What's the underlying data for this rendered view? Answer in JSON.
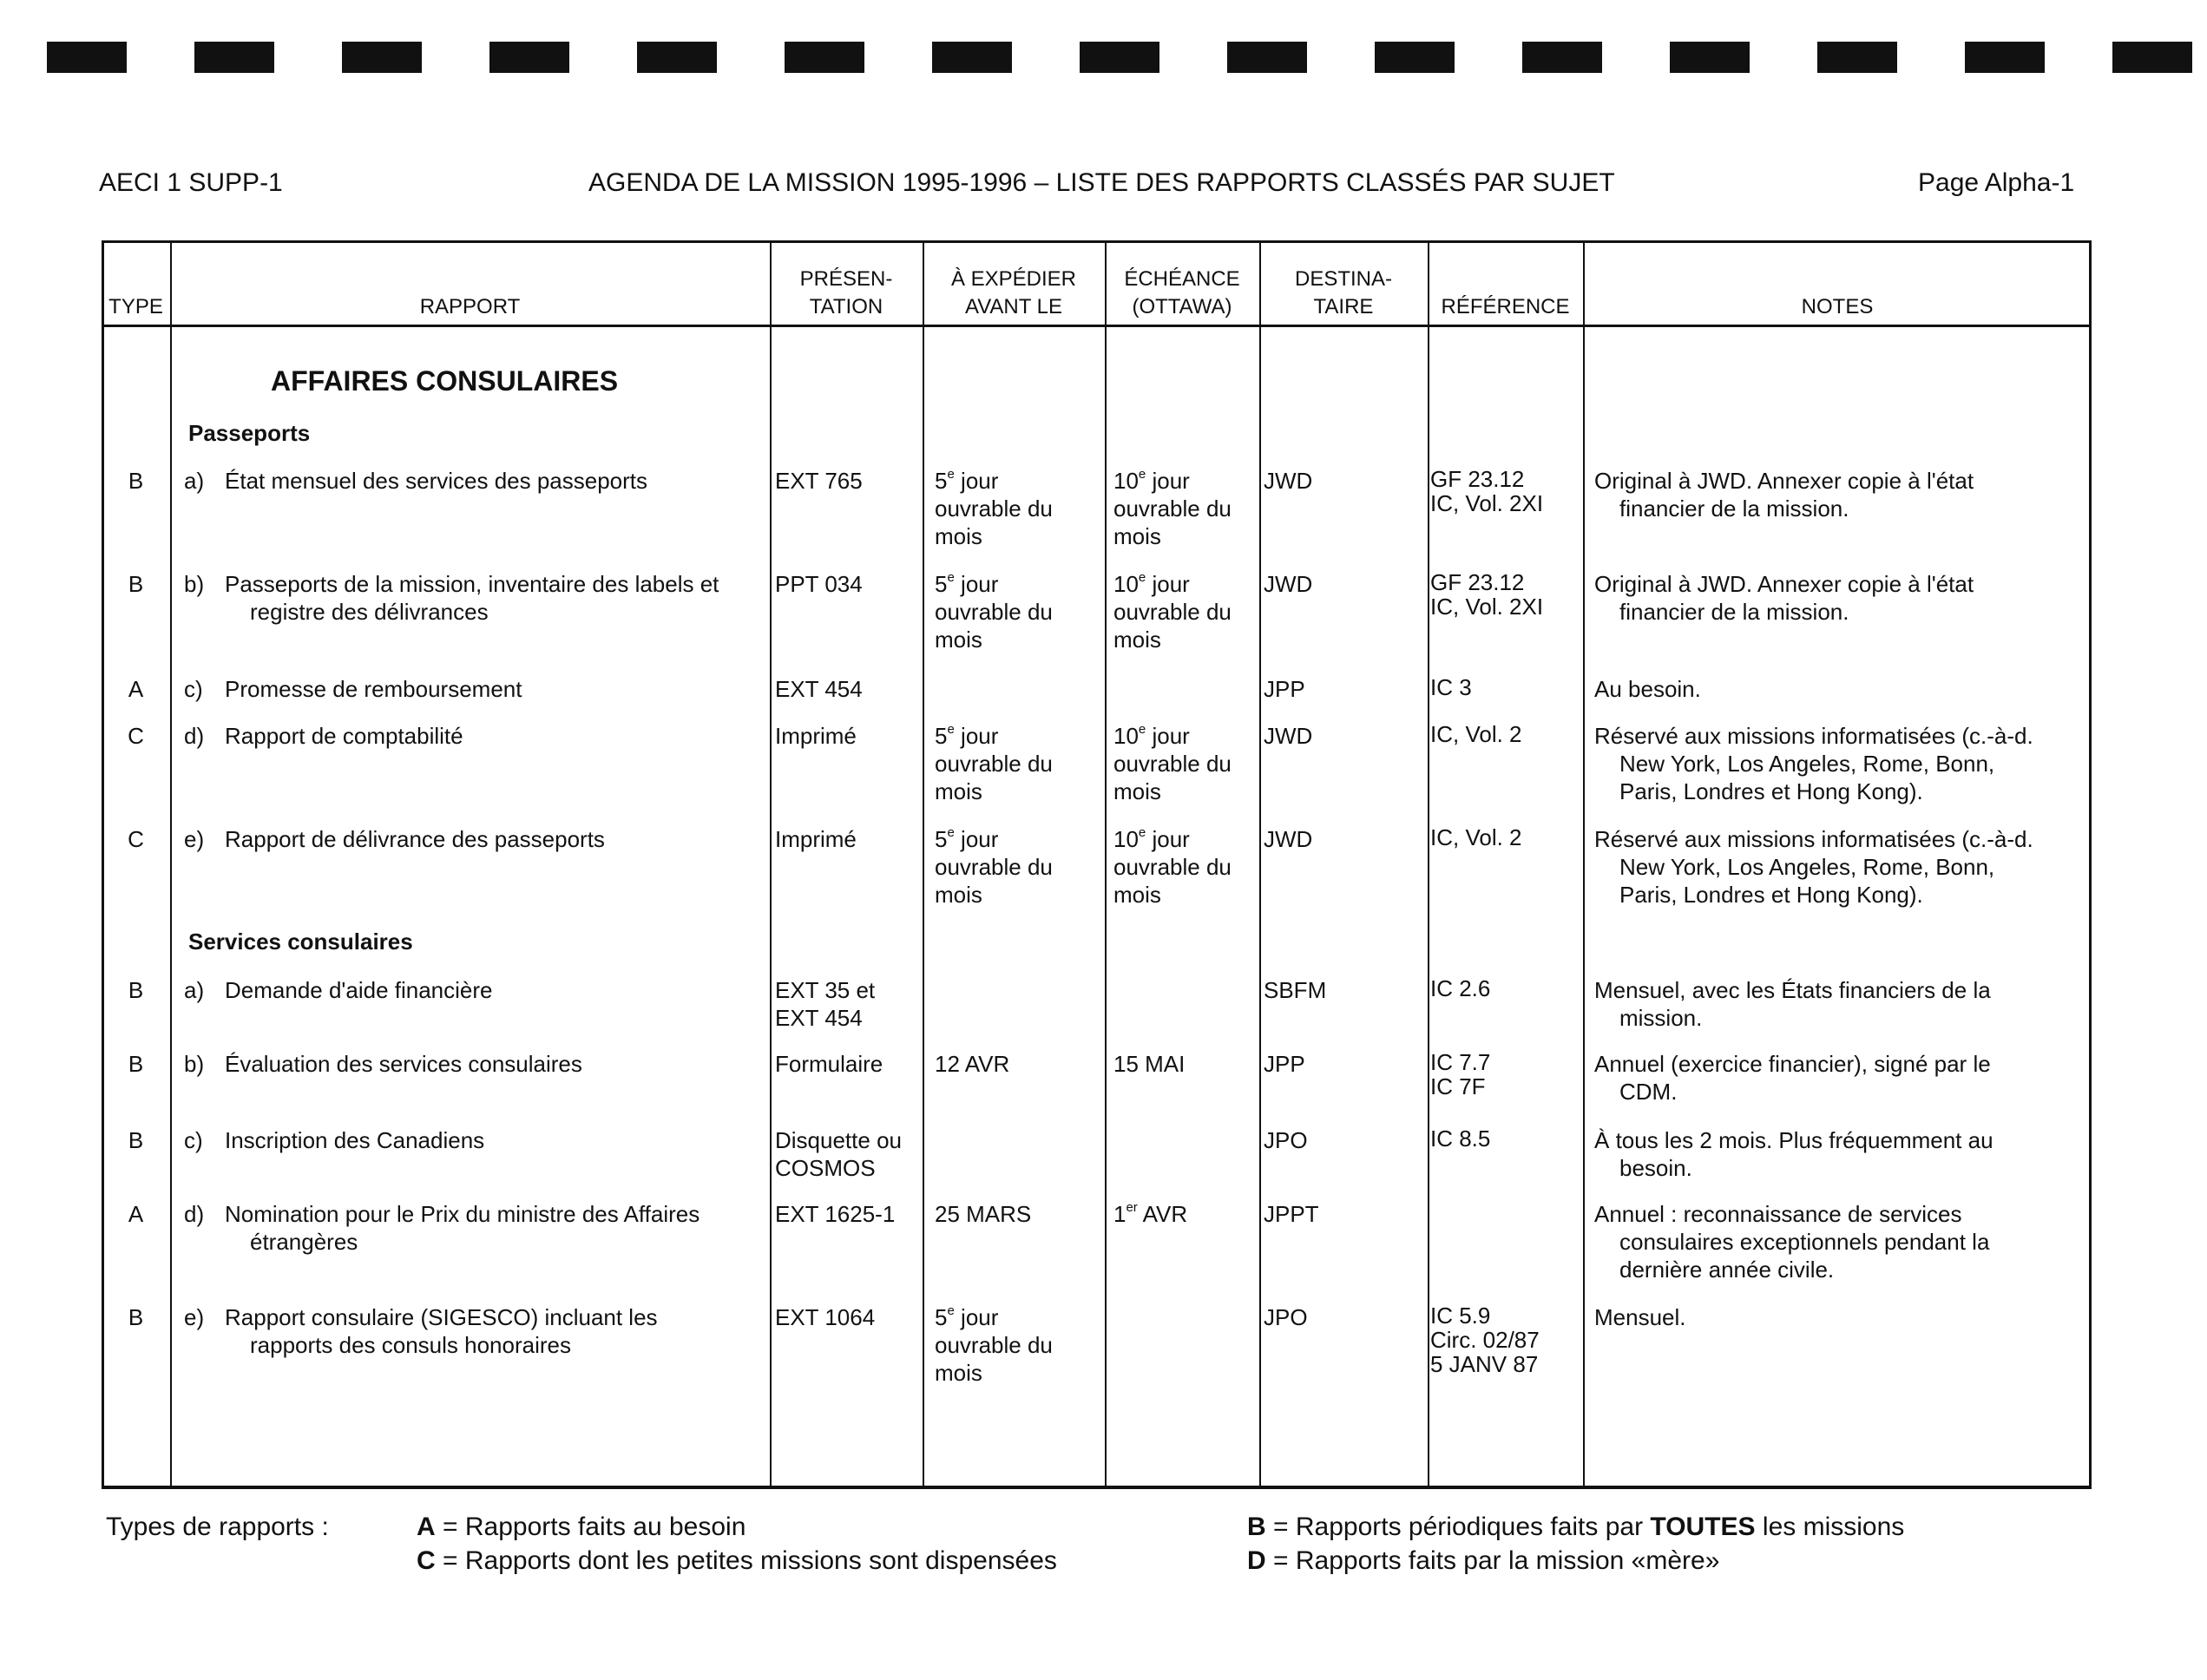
{
  "header": {
    "doc_id": "AECI 1 SUPP-1",
    "title": "AGENDA DE LA MISSION 1995-1996 – LISTE DES RAPPORTS CLASSÉS PAR SUJET",
    "page": "Page Alpha-1"
  },
  "columns": [
    [
      "TYPE"
    ],
    [
      "RAPPORT"
    ],
    [
      "PRÉSEN-",
      "TATION"
    ],
    [
      "À EXPÉDIER",
      "AVANT LE"
    ],
    [
      "ÉCHÉANCE",
      "(OTTAWA)"
    ],
    [
      "DESTINA-",
      "TAIRE"
    ],
    [
      "RÉFÉRENCE"
    ],
    [
      "NOTES"
    ]
  ],
  "section_title": "AFFAIRES CONSULAIRES",
  "groups": [
    {
      "title": "Passeports",
      "rows": [
        {
          "type": "B",
          "letter": "a)",
          "rapport": [
            "État mensuel des services des passeports"
          ],
          "presentation": [
            "EXT 765"
          ],
          "expedier": {
            "num": "5",
            "sup": "e",
            "lines": [
              " jour",
              "ouvrable du",
              "mois"
            ]
          },
          "echeance": {
            "num": "10",
            "sup": "e",
            "lines": [
              " jour",
              "ouvrable du",
              "mois"
            ]
          },
          "destinataire": "JWD",
          "reference": [
            "GF 23.12",
            "IC, Vol. 2XI"
          ],
          "notes": [
            "Original à JWD. Annexer copie à l'état",
            "financier de la mission."
          ]
        },
        {
          "type": "B",
          "letter": "b)",
          "rapport": [
            "Passeports de la mission, inventaire des labels et",
            "registre des délivrances"
          ],
          "presentation": [
            "PPT 034"
          ],
          "expedier": {
            "num": "5",
            "sup": "e",
            "lines": [
              " jour",
              "ouvrable du",
              "mois"
            ]
          },
          "echeance": {
            "num": "10",
            "sup": "e",
            "lines": [
              " jour",
              "ouvrable du",
              "mois"
            ]
          },
          "destinataire": "JWD",
          "reference": [
            "GF 23.12",
            "IC, Vol. 2XI"
          ],
          "notes": [
            "Original à JWD. Annexer copie à l'état",
            "financier de la mission."
          ]
        },
        {
          "type": "A",
          "letter": "c)",
          "rapport": [
            "Promesse de remboursement"
          ],
          "presentation": [
            "EXT 454"
          ],
          "expedier": null,
          "echeance": null,
          "destinataire": "JPP",
          "reference": [
            "IC 3"
          ],
          "notes": [
            "Au besoin."
          ]
        },
        {
          "type": "C",
          "letter": "d)",
          "rapport": [
            "Rapport de comptabilité"
          ],
          "presentation": [
            "Imprimé"
          ],
          "expedier": {
            "num": "5",
            "sup": "e",
            "lines": [
              " jour",
              "ouvrable du",
              "mois"
            ]
          },
          "echeance": {
            "num": "10",
            "sup": "e",
            "lines": [
              " jour",
              "ouvrable du",
              "mois"
            ]
          },
          "destinataire": "JWD",
          "reference": [
            "IC, Vol. 2"
          ],
          "notes": [
            "Réservé aux missions informatisées (c.-à-d.",
            "New York, Los Angeles, Rome, Bonn,",
            "Paris, Londres et Hong Kong)."
          ]
        },
        {
          "type": "C",
          "letter": "e)",
          "rapport": [
            "Rapport de délivrance des passeports"
          ],
          "presentation": [
            "Imprimé"
          ],
          "expedier": {
            "num": "5",
            "sup": "e",
            "lines": [
              " jour",
              "ouvrable du",
              "mois"
            ]
          },
          "echeance": {
            "num": "10",
            "sup": "e",
            "lines": [
              " jour",
              "ouvrable du",
              "mois"
            ]
          },
          "destinataire": "JWD",
          "reference": [
            "IC, Vol. 2"
          ],
          "notes": [
            "Réservé aux missions informatisées (c.-à-d.",
            "New York, Los Angeles, Rome, Bonn,",
            "Paris, Londres et Hong Kong)."
          ]
        }
      ]
    },
    {
      "title": "Services consulaires",
      "rows": [
        {
          "type": "B",
          "letter": "a)",
          "rapport": [
            "Demande d'aide financière"
          ],
          "presentation": [
            "EXT 35 et",
            "EXT 454"
          ],
          "expedier": null,
          "echeance": null,
          "destinataire": "SBFM",
          "reference": [
            "IC 2.6"
          ],
          "notes": [
            "Mensuel, avec les États financiers de la",
            "mission."
          ]
        },
        {
          "type": "B",
          "letter": "b)",
          "rapport": [
            "Évaluation des services consulaires"
          ],
          "presentation": [
            "Formulaire"
          ],
          "expedier": {
            "num": "12 AVR",
            "sup": "",
            "lines": []
          },
          "echeance": {
            "num": "15 MAI",
            "sup": "",
            "lines": []
          },
          "destinataire": "JPP",
          "reference": [
            "IC 7.7",
            "IC 7F"
          ],
          "notes": [
            "Annuel (exercice financier), signé par le",
            "CDM."
          ]
        },
        {
          "type": "B",
          "letter": "c)",
          "rapport": [
            "Inscription des Canadiens"
          ],
          "presentation": [
            "Disquette ou",
            "COSMOS"
          ],
          "expedier": null,
          "echeance": null,
          "destinataire": "JPO",
          "reference": [
            "IC 8.5"
          ],
          "notes": [
            "À tous les 2 mois. Plus fréquemment au",
            "besoin."
          ]
        },
        {
          "type": "A",
          "letter": "d)",
          "rapport": [
            "Nomination pour le Prix du ministre des Affaires",
            "étrangères"
          ],
          "presentation": [
            "EXT 1625-1"
          ],
          "expedier": {
            "num": "25 MARS",
            "sup": "",
            "lines": []
          },
          "echeance": {
            "num": "1",
            "sup": "er",
            "lines": [
              " AVR"
            ]
          },
          "destinataire": "JPPT",
          "reference": [],
          "notes": [
            "Annuel : reconnaissance de services",
            "consulaires exceptionnels pendant la",
            "dernière année civile."
          ]
        },
        {
          "type": "B",
          "letter": "e)",
          "rapport": [
            "Rapport consulaire (SIGESCO) incluant les",
            "rapports des consuls honoraires"
          ],
          "presentation": [
            "EXT 1064"
          ],
          "expedier": {
            "num": "5",
            "sup": "e",
            "lines": [
              " jour",
              "ouvrable du",
              "mois"
            ]
          },
          "echeance": null,
          "destinataire": "JPO",
          "reference": [
            "IC 5.9",
            "Circ. 02/87",
            "5 JANV 87"
          ],
          "notes": [
            "Mensuel."
          ]
        }
      ]
    }
  ],
  "legend": {
    "label": "Types de rapports :",
    "A": {
      "key": "A",
      "text": " = Rapports faits au besoin"
    },
    "B": {
      "key": "B",
      "pre": " = Rapports périodiques faits par ",
      "bold": "TOUTES",
      "post": " les missions"
    },
    "C": {
      "key": "C",
      "text": " = Rapports dont les petites missions sont dispensées"
    },
    "D": {
      "key": "D",
      "text": " = Rapports faits par la mission «mère»"
    }
  }
}
